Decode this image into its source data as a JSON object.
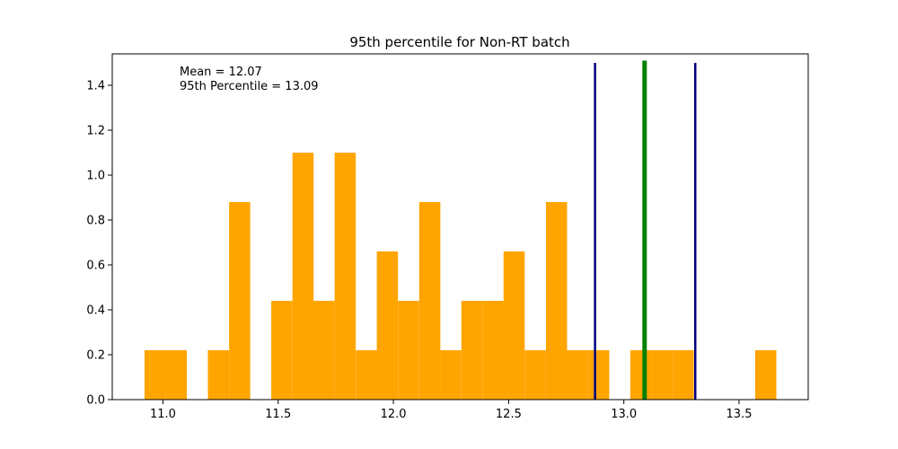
{
  "chart_data": {
    "type": "bar",
    "title": "95th percentile for Non-RT batch",
    "xlabel": "",
    "ylabel": "",
    "xlim": [
      10.78,
      13.8
    ],
    "ylim": [
      0,
      1.54
    ],
    "grid": false,
    "bar_color": "#ffa500",
    "bin_width": 0.0917,
    "bins": [
      {
        "left": 10.92,
        "height": 0.22
      },
      {
        "left": 11.012,
        "height": 0.22
      },
      {
        "left": 11.195,
        "height": 0.22
      },
      {
        "left": 11.287,
        "height": 0.88
      },
      {
        "left": 11.47,
        "height": 0.44
      },
      {
        "left": 11.562,
        "height": 1.1
      },
      {
        "left": 11.653,
        "height": 0.44
      },
      {
        "left": 11.745,
        "height": 1.1
      },
      {
        "left": 11.837,
        "height": 0.22
      },
      {
        "left": 11.928,
        "height": 0.66
      },
      {
        "left": 12.02,
        "height": 0.44
      },
      {
        "left": 12.112,
        "height": 0.88
      },
      {
        "left": 12.203,
        "height": 0.22
      },
      {
        "left": 12.295,
        "height": 0.44
      },
      {
        "left": 12.387,
        "height": 0.44
      },
      {
        "left": 12.478,
        "height": 0.66
      },
      {
        "left": 12.57,
        "height": 0.22
      },
      {
        "left": 12.662,
        "height": 0.88
      },
      {
        "left": 12.753,
        "height": 0.22
      },
      {
        "left": 12.845,
        "height": 0.22
      },
      {
        "left": 13.028,
        "height": 0.22
      },
      {
        "left": 13.12,
        "height": 0.22
      },
      {
        "left": 13.212,
        "height": 0.22
      },
      {
        "left": 13.57,
        "height": 0.22
      }
    ],
    "vlines": [
      {
        "x": 12.875,
        "ymax": 1.5,
        "color": "#000080",
        "width": 2.5
      },
      {
        "x": 13.09,
        "ymax": 1.51,
        "color": "#008000",
        "width": 5
      },
      {
        "x": 13.31,
        "ymax": 1.5,
        "color": "#000080",
        "width": 2.5
      }
    ],
    "xticks": [
      {
        "value": 11.0,
        "label": "11.0"
      },
      {
        "value": 11.5,
        "label": "11.5"
      },
      {
        "value": 12.0,
        "label": "12.0"
      },
      {
        "value": 12.5,
        "label": "12.5"
      },
      {
        "value": 13.0,
        "label": "13.0"
      },
      {
        "value": 13.5,
        "label": "13.5"
      }
    ],
    "yticks": [
      {
        "value": 0.0,
        "label": "0.0"
      },
      {
        "value": 0.2,
        "label": "0.2"
      },
      {
        "value": 0.4,
        "label": "0.4"
      },
      {
        "value": 0.6,
        "label": "0.6"
      },
      {
        "value": 0.8,
        "label": "0.8"
      },
      {
        "value": 1.0,
        "label": "1.0"
      },
      {
        "value": 1.2,
        "label": "1.2"
      },
      {
        "value": 1.4,
        "label": "1.4"
      }
    ],
    "annotations": [
      "Mean = 12.07",
      "95th Percentile = 13.09"
    ]
  }
}
